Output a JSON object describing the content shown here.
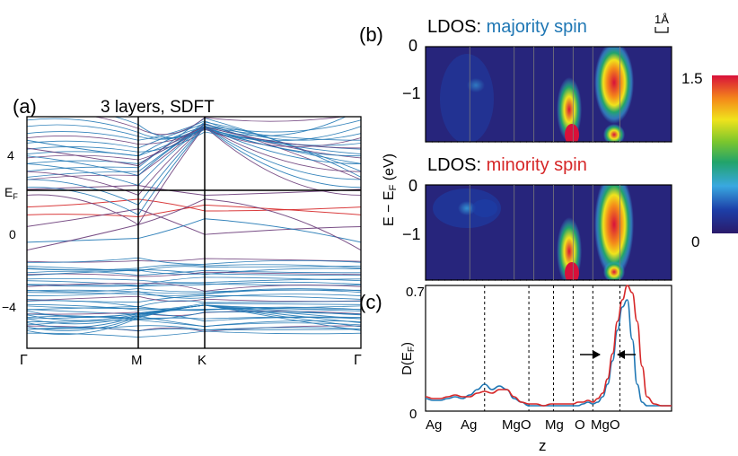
{
  "panel_a": {
    "label": "(a)",
    "title": "3 layers, SDFT",
    "y_ticks": [
      "4",
      "0",
      "−4"
    ],
    "ef_label": "E",
    "ef_sub": "F",
    "k_labels": [
      "Γ",
      "M",
      "K",
      "Γ"
    ]
  },
  "panel_b": {
    "label": "(b)",
    "scale_label": "1Å",
    "majority": {
      "prefix": "LDOS: ",
      "text": "majority spin",
      "color": "#1f77b4"
    },
    "minority": {
      "prefix": "LDOS: ",
      "text": "minority spin",
      "color": "#d62728"
    },
    "y_ticks": [
      "0",
      "−1"
    ],
    "ylabel": "E − E",
    "ylabel_sub": "F",
    "ylabel_unit": " (eV)",
    "colorbar": {
      "max": "1.5",
      "min": "0"
    }
  },
  "panel_c": {
    "label": "(c)",
    "y_ticks": [
      "0.7",
      "0"
    ],
    "ylabel": "D(E",
    "ylabel_sub": "F",
    "ylabel_close": ")",
    "xlabel": "z",
    "layer_labels": [
      "Ag",
      "Ag",
      "MgO",
      "Mg",
      "O",
      "MgO"
    ]
  },
  "chart_data": [
    {
      "type": "line",
      "panel": "a",
      "title": "3 layers, SDFT",
      "xlabel": "",
      "ylabel": "",
      "x_ticks": [
        "Γ",
        "M",
        "K",
        "Γ"
      ],
      "y_ticks": [
        4,
        0,
        -4
      ],
      "ylim": [
        -5.8,
        6
      ],
      "fermi_level": 2.2,
      "colors": {
        "majority": "#1f77b4",
        "minority": "#d62728"
      }
    },
    {
      "type": "heatmap",
      "panel": "b",
      "series": [
        {
          "name": "majority spin",
          "ylim": [
            -1.9,
            0
          ],
          "peaks": [
            {
              "z": 0.79,
              "e_center": -1.0,
              "amplitude": 1.5
            },
            {
              "z": 0.7,
              "e_center": -1.9,
              "amplitude": 1.2
            },
            {
              "z": 0.24,
              "e_center": -1.6,
              "amplitude": 0.25
            }
          ]
        },
        {
          "name": "minority spin",
          "ylim": [
            -1.9,
            0
          ],
          "peaks": [
            {
              "z": 0.79,
              "e_center": -0.6,
              "amplitude": 1.5
            },
            {
              "z": 0.7,
              "e_center": -1.9,
              "amplitude": 1.2
            },
            {
              "z": 0.24,
              "e_center": -0.45,
              "amplitude": 0.35
            }
          ]
        }
      ],
      "colorbar_range": [
        0,
        1.5
      ]
    },
    {
      "type": "line",
      "panel": "c",
      "xlabel": "z",
      "ylabel": "D(EF)",
      "ylim": [
        0,
        0.7
      ],
      "x": [
        0.0,
        0.03,
        0.06,
        0.09,
        0.12,
        0.15,
        0.18,
        0.21,
        0.24,
        0.27,
        0.3,
        0.33,
        0.36,
        0.39,
        0.42,
        0.45,
        0.48,
        0.51,
        0.54,
        0.57,
        0.6,
        0.62,
        0.64,
        0.66,
        0.68,
        0.7,
        0.72,
        0.74,
        0.76,
        0.78,
        0.8,
        0.82,
        0.84,
        0.86,
        0.88,
        0.9,
        0.93,
        0.96,
        1.0
      ],
      "series": [
        {
          "name": "majority spin",
          "color": "#1f77b4",
          "values": [
            0.07,
            0.06,
            0.06,
            0.07,
            0.08,
            0.07,
            0.09,
            0.12,
            0.15,
            0.12,
            0.14,
            0.12,
            0.07,
            0.05,
            0.03,
            0.03,
            0.03,
            0.03,
            0.03,
            0.03,
            0.03,
            0.03,
            0.04,
            0.05,
            0.04,
            0.05,
            0.08,
            0.15,
            0.28,
            0.45,
            0.58,
            0.62,
            0.4,
            0.15,
            0.05,
            0.03,
            0.03,
            0.03,
            0.03
          ]
        },
        {
          "name": "minority spin",
          "color": "#d62728",
          "values": [
            0.08,
            0.07,
            0.07,
            0.08,
            0.09,
            0.08,
            0.08,
            0.1,
            0.11,
            0.1,
            0.12,
            0.12,
            0.08,
            0.05,
            0.04,
            0.04,
            0.03,
            0.04,
            0.04,
            0.04,
            0.04,
            0.05,
            0.05,
            0.06,
            0.05,
            0.07,
            0.1,
            0.18,
            0.32,
            0.5,
            0.62,
            0.7,
            0.66,
            0.5,
            0.25,
            0.08,
            0.04,
            0.03,
            0.03
          ]
        }
      ],
      "layer_positions": [
        0.24,
        0.42,
        0.52,
        0.6,
        0.68,
        0.79
      ]
    }
  ]
}
